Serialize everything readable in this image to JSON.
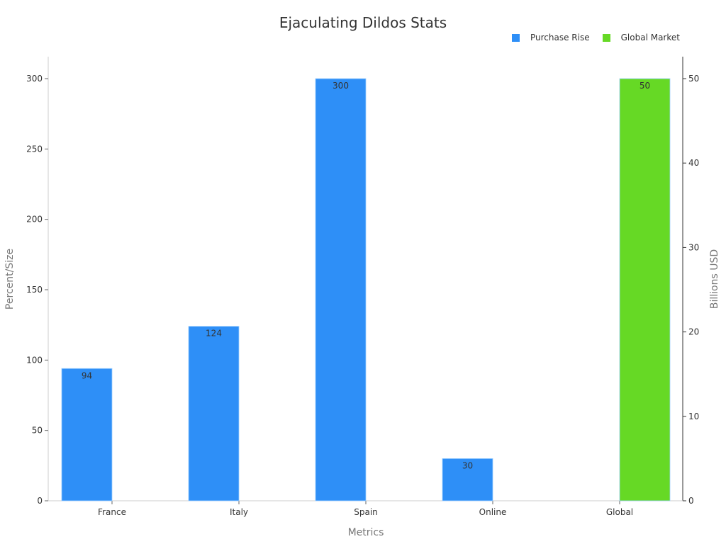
{
  "chart": {
    "title": "Ejaculating Dildos Stats",
    "legend": [
      {
        "label": "Purchase Rise",
        "color": "#2E8FF7"
      },
      {
        "label": "Global Market",
        "color": "#66D925"
      }
    ],
    "xlabel": "Metrics",
    "ylabel_left": "Percent/Size",
    "ylabel_right": "Billions USD"
  },
  "chart_data": {
    "type": "bar",
    "title": "Ejaculating Dildos Stats",
    "categories": [
      "France",
      "Italy",
      "Spain",
      "Online",
      "Global"
    ],
    "series": [
      {
        "name": "Purchase Rise",
        "axis": "left",
        "color": "#2E8FF7",
        "values": [
          94,
          124,
          300,
          30,
          null
        ]
      },
      {
        "name": "Global Market",
        "axis": "right",
        "color": "#66D925",
        "values": [
          null,
          null,
          null,
          null,
          50
        ]
      }
    ],
    "xlabel": "Metrics",
    "ylabel": "Percent/Size",
    "ylabel_right": "Billions USD",
    "ylim": [
      0,
      316
    ],
    "ylim_right": [
      0,
      52.7
    ],
    "yticks": [
      0,
      50,
      100,
      150,
      200,
      250,
      300
    ],
    "yticks_right": [
      0,
      10,
      20,
      30,
      40,
      50
    ],
    "legend_position": "top-right",
    "grid": false
  }
}
